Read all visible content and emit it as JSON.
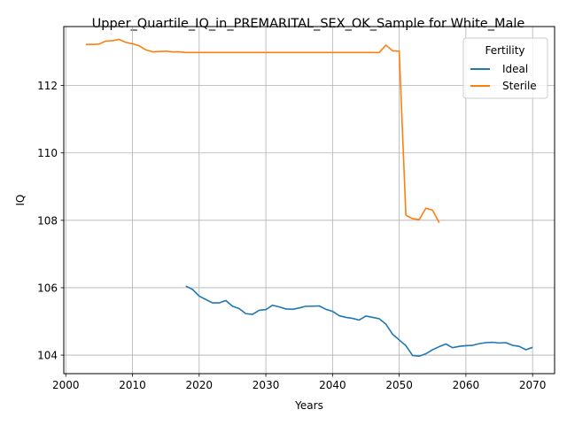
{
  "chart_data": {
    "type": "line",
    "title": "Upper_Quartile_IQ_in_PREMARITAL_SEX_OK_Sample for White_Male",
    "xlabel": "Years",
    "ylabel": "IQ",
    "xlim": [
      1999.7,
      2073.3
    ],
    "ylim": [
      103.45,
      113.75
    ],
    "xticks": [
      2000,
      2010,
      2020,
      2030,
      2040,
      2050,
      2060,
      2070
    ],
    "yticks": [
      104,
      106,
      108,
      110,
      112
    ],
    "grid": true,
    "legend": {
      "title": "Fertility",
      "placement": "top-right"
    },
    "series": [
      {
        "name": "Ideal",
        "color": "#1f77b4",
        "x": [
          2018,
          2019,
          2020,
          2021,
          2022,
          2023,
          2024,
          2025,
          2026,
          2027,
          2028,
          2029,
          2030,
          2031,
          2032,
          2033,
          2034,
          2035,
          2036,
          2037,
          2038,
          2039,
          2040,
          2041,
          2042,
          2043,
          2044,
          2045,
          2046,
          2047,
          2048,
          2049,
          2050,
          2051,
          2052,
          2053,
          2054,
          2055,
          2056,
          2057,
          2058,
          2059,
          2060,
          2061,
          2062,
          2063,
          2064,
          2065,
          2066,
          2067,
          2068,
          2069,
          2070
        ],
        "y": [
          106.05,
          105.95,
          105.75,
          105.65,
          105.55,
          105.55,
          105.62,
          105.45,
          105.38,
          105.23,
          105.21,
          105.33,
          105.35,
          105.48,
          105.43,
          105.37,
          105.36,
          105.4,
          105.45,
          105.45,
          105.46,
          105.36,
          105.3,
          105.17,
          105.12,
          105.09,
          105.04,
          105.16,
          105.12,
          105.08,
          104.92,
          104.62,
          104.45,
          104.28,
          103.99,
          103.97,
          104.04,
          104.16,
          104.25,
          104.33,
          104.22,
          104.26,
          104.28,
          104.29,
          104.34,
          104.37,
          104.38,
          104.36,
          104.37,
          104.29,
          104.26,
          104.16,
          104.23
        ]
      },
      {
        "name": "Sterile",
        "color": "#ff7f0e",
        "x": [
          2003,
          2004,
          2005,
          2006,
          2007,
          2008,
          2009,
          2010,
          2011,
          2012,
          2013,
          2014,
          2015,
          2016,
          2017,
          2018,
          2019,
          2020,
          2021,
          2022,
          2023,
          2024,
          2025,
          2026,
          2027,
          2028,
          2029,
          2030,
          2031,
          2032,
          2033,
          2034,
          2035,
          2036,
          2037,
          2038,
          2039,
          2040,
          2041,
          2042,
          2043,
          2044,
          2045,
          2046,
          2047,
          2048,
          2049,
          2050,
          2051,
          2052,
          2053,
          2054,
          2055,
          2056
        ],
        "y": [
          113.22,
          113.22,
          113.23,
          113.32,
          113.33,
          113.37,
          113.28,
          113.24,
          113.18,
          113.06,
          113.0,
          113.01,
          113.02,
          113.0,
          113.0,
          112.98,
          112.98,
          112.98,
          112.98,
          112.98,
          112.98,
          112.98,
          112.98,
          112.98,
          112.98,
          112.98,
          112.98,
          112.98,
          112.98,
          112.98,
          112.98,
          112.98,
          112.98,
          112.98,
          112.98,
          112.98,
          112.98,
          112.98,
          112.98,
          112.98,
          112.98,
          112.98,
          112.98,
          112.98,
          112.98,
          113.2,
          113.03,
          113.02,
          108.15,
          108.05,
          108.02,
          108.36,
          108.3,
          107.93
        ]
      }
    ]
  }
}
